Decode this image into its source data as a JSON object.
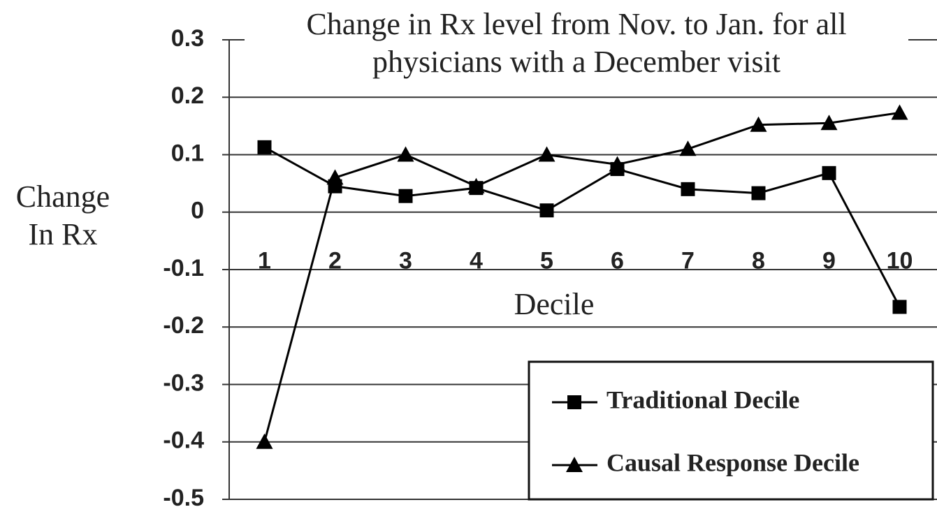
{
  "chart_data": {
    "type": "line",
    "title": "Change in Rx level from Nov. to Jan. for all physicians with a December visit",
    "x_label": "Decile",
    "y_label": "Change In Rx",
    "categories": [
      "1",
      "2",
      "3",
      "4",
      "5",
      "6",
      "7",
      "8",
      "9",
      "10"
    ],
    "series": [
      {
        "name": "Traditional Decile",
        "color": "#000000",
        "marker": "square",
        "values": [
          0.113,
          0.045,
          0.028,
          0.042,
          0.003,
          0.075,
          0.04,
          0.033,
          0.068,
          -0.165
        ]
      },
      {
        "name": "Causal Response Decile",
        "color": "#000000",
        "marker": "triangle",
        "values": [
          -0.4,
          0.06,
          0.1,
          0.045,
          0.1,
          0.083,
          0.11,
          0.152,
          0.155,
          0.173
        ]
      }
    ],
    "ylim": [
      -0.5,
      0.3
    ],
    "yticks": [
      0.3,
      0.2,
      0.1,
      0,
      -0.1,
      -0.2,
      -0.3,
      -0.4,
      -0.5
    ],
    "grid": true,
    "legend": "lower right"
  }
}
